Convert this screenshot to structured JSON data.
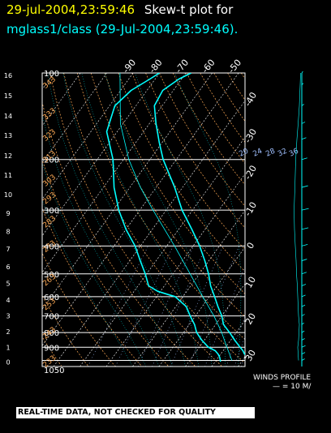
{
  "title": {
    "time": "29-jul-2004,23:59:46",
    "label": "Skew-t plot for",
    "subtitle": "mglass1/class (29-Jul-2004,23:59:46).",
    "time_color": "#ffff00",
    "label_color": "#ffffff",
    "subtitle_color": "#00ffff"
  },
  "banner": "REAL-TIME DATA, NOT CHECKED FOR QUALITY",
  "winds": {
    "label": "WINDS PROFILE",
    "scale": "— = 10 M/"
  },
  "chart_data": {
    "type": "line",
    "pressure_ticks": [
      {
        "p": 100,
        "label": "100"
      },
      {
        "p": 200,
        "label": "200"
      },
      {
        "p": 300,
        "label": "300"
      },
      {
        "p": 400,
        "label": "400"
      },
      {
        "p": 500,
        "label": "500"
      },
      {
        "p": 600,
        "label": "600"
      },
      {
        "p": 700,
        "label": "700"
      },
      {
        "p": 800,
        "label": "800"
      },
      {
        "p": 900,
        "label": "900"
      },
      {
        "p": 1050,
        "label": "1050"
      }
    ],
    "height_ticks": [
      {
        "p": 1012,
        "label": "0"
      },
      {
        "p": 900,
        "label": "1"
      },
      {
        "p": 795,
        "label": "2"
      },
      {
        "p": 700,
        "label": "3"
      },
      {
        "p": 616,
        "label": "4"
      },
      {
        "p": 540,
        "label": "5"
      },
      {
        "p": 472,
        "label": "6"
      },
      {
        "p": 410,
        "label": "7"
      },
      {
        "p": 356,
        "label": "8"
      },
      {
        "p": 308,
        "label": "9"
      },
      {
        "p": 265,
        "label": "10"
      },
      {
        "p": 227,
        "label": "11"
      },
      {
        "p": 194,
        "label": "12"
      },
      {
        "p": 165,
        "label": "13"
      },
      {
        "p": 141,
        "label": "14"
      },
      {
        "p": 120,
        "label": "15"
      },
      {
        "p": 102,
        "label": "16"
      }
    ],
    "isotherm_labels": [
      {
        "t": -90,
        "label": "-90"
      },
      {
        "t": -80,
        "label": "-80"
      },
      {
        "t": -70,
        "label": "-70"
      },
      {
        "t": -60,
        "label": "-60"
      },
      {
        "t": -50,
        "label": "-50"
      },
      {
        "t": -40,
        "label": "-40"
      },
      {
        "t": -30,
        "label": "-30"
      },
      {
        "t": -20,
        "label": "-20"
      },
      {
        "t": -10,
        "label": "-10"
      },
      {
        "t": 0,
        "label": "0"
      },
      {
        "t": 10,
        "label": "10"
      },
      {
        "t": 20,
        "label": "20"
      },
      {
        "t": 30,
        "label": "30"
      }
    ],
    "mixing_ratio_labels": [
      {
        "w": 20,
        "label": "20"
      },
      {
        "w": 24,
        "label": "24"
      },
      {
        "w": 28,
        "label": "28"
      },
      {
        "w": 32,
        "label": "32"
      },
      {
        "w": 36,
        "label": "36"
      }
    ],
    "theta_labels": [
      {
        "p": 105,
        "label": "343"
      },
      {
        "p": 135,
        "label": "333"
      },
      {
        "p": 160,
        "label": "323"
      },
      {
        "p": 190,
        "label": "313"
      },
      {
        "p": 230,
        "label": "303"
      },
      {
        "p": 265,
        "label": "293"
      },
      {
        "p": 320,
        "label": "283"
      },
      {
        "p": 390,
        "label": "273"
      },
      {
        "p": 510,
        "label": "263"
      },
      {
        "p": 620,
        "label": "253"
      },
      {
        "p": 780,
        "label": "243"
      },
      {
        "p": 980,
        "label": "233"
      }
    ],
    "temperature_profile": [
      {
        "p": 1010,
        "t": 33.0
      },
      {
        "p": 975,
        "t": 31.5
      },
      {
        "p": 950,
        "t": 29.0
      },
      {
        "p": 925,
        "t": 27.5
      },
      {
        "p": 900,
        "t": 25.5
      },
      {
        "p": 850,
        "t": 21.5
      },
      {
        "p": 800,
        "t": 17.5
      },
      {
        "p": 750,
        "t": 13.0
      },
      {
        "p": 700,
        "t": 10.0
      },
      {
        "p": 650,
        "t": 6.0
      },
      {
        "p": 600,
        "t": 2.0
      },
      {
        "p": 550,
        "t": -2.5
      },
      {
        "p": 500,
        "t": -6.5
      },
      {
        "p": 450,
        "t": -11.5
      },
      {
        "p": 400,
        "t": -17.5
      },
      {
        "p": 350,
        "t": -25.0
      },
      {
        "p": 300,
        "t": -34.0
      },
      {
        "p": 250,
        "t": -43.0
      },
      {
        "p": 200,
        "t": -55.0
      },
      {
        "p": 175,
        "t": -61.0
      },
      {
        "p": 150,
        "t": -67.5
      },
      {
        "p": 130,
        "t": -73.0
      },
      {
        "p": 115,
        "t": -74.0
      },
      {
        "p": 105,
        "t": -71.0
      },
      {
        "p": 100,
        "t": -68.0
      }
    ],
    "dewpoint_profile": [
      {
        "p": 1010,
        "t": 22.0
      },
      {
        "p": 975,
        "t": 20.5
      },
      {
        "p": 950,
        "t": 19.0
      },
      {
        "p": 925,
        "t": 17.0
      },
      {
        "p": 900,
        "t": 13.5
      },
      {
        "p": 850,
        "t": 9.0
      },
      {
        "p": 800,
        "t": 5.0
      },
      {
        "p": 750,
        "t": 2.0
      },
      {
        "p": 700,
        "t": -2.0
      },
      {
        "p": 650,
        "t": -6.0
      },
      {
        "p": 600,
        "t": -13.0
      },
      {
        "p": 575,
        "t": -21.0
      },
      {
        "p": 550,
        "t": -26.0
      },
      {
        "p": 500,
        "t": -30.5
      },
      {
        "p": 450,
        "t": -36.0
      },
      {
        "p": 400,
        "t": -42.0
      },
      {
        "p": 350,
        "t": -50.0
      },
      {
        "p": 300,
        "t": -58.0
      },
      {
        "p": 250,
        "t": -66.0
      },
      {
        "p": 200,
        "t": -74.0
      },
      {
        "p": 160,
        "t": -84.0
      },
      {
        "p": 130,
        "t": -88.0
      },
      {
        "p": 115,
        "t": -86.0
      },
      {
        "p": 105,
        "t": -82.0
      },
      {
        "p": 100,
        "t": -80.0
      }
    ],
    "parcel_path": [
      {
        "p": 1000,
        "t": 26.0
      },
      {
        "p": 900,
        "t": 20.5
      },
      {
        "p": 800,
        "t": 14.5
      },
      {
        "p": 700,
        "t": 7.0
      },
      {
        "p": 600,
        "t": -2.5
      },
      {
        "p": 500,
        "t": -13.5
      },
      {
        "p": 400,
        "t": -27.0
      },
      {
        "p": 300,
        "t": -45.0
      },
      {
        "p": 250,
        "t": -56.0
      },
      {
        "p": 200,
        "t": -68.0
      },
      {
        "p": 150,
        "t": -81.0
      },
      {
        "p": 100,
        "t": -95.0
      }
    ],
    "wind_profile": [
      {
        "p": 1000,
        "speed": 4.0
      },
      {
        "p": 950,
        "speed": 4.5
      },
      {
        "p": 900,
        "speed": 5.0
      },
      {
        "p": 850,
        "speed": 4.0
      },
      {
        "p": 800,
        "speed": 3.5
      },
      {
        "p": 750,
        "speed": 3.0
      },
      {
        "p": 700,
        "speed": 4.0
      },
      {
        "p": 650,
        "speed": 4.5
      },
      {
        "p": 600,
        "speed": 5.0
      },
      {
        "p": 550,
        "speed": 5.5
      },
      {
        "p": 500,
        "speed": 6.5
      },
      {
        "p": 450,
        "speed": 7.0
      },
      {
        "p": 400,
        "speed": 8.0
      },
      {
        "p": 350,
        "speed": 9.0
      },
      {
        "p": 300,
        "speed": 9.5
      },
      {
        "p": 250,
        "speed": 8.5
      },
      {
        "p": 200,
        "speed": 7.5
      },
      {
        "p": 170,
        "speed": 6.0
      },
      {
        "p": 150,
        "speed": 4.5
      },
      {
        "p": 130,
        "speed": 3.0
      },
      {
        "p": 110,
        "speed": 2.0
      },
      {
        "p": 100,
        "speed": 1.5
      }
    ],
    "colors": {
      "frame": "#ffffff",
      "isobar": "#ffffff",
      "isotherm": "#ffffff",
      "dry_adiabat": "#ffaa55",
      "moist_adiabat": "#00ffff",
      "mixing_ratio": "#a0c0ff",
      "temperature": "#00ffff",
      "dewpoint": "#00ffff",
      "wind": "#00ffff"
    }
  }
}
